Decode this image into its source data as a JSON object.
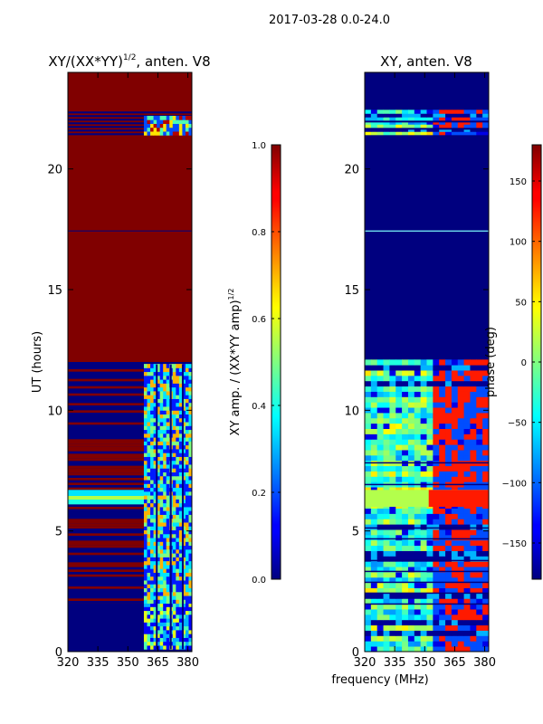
{
  "suptitle": "2017-03-28 0.0-24.0",
  "xlabel": "frequency (MHz)",
  "colors": {
    "hot": "#800000",
    "cold": "#00007f",
    "cyan": "#80ffff"
  },
  "chart_data": [
    {
      "type": "heatmap",
      "title_main": "XY/(XX*YY)",
      "title_sup": "1/2",
      "title_suffix": ", anten. V8",
      "ylabel": "UT (hours)",
      "xlim": [
        320,
        382
      ],
      "ylim": [
        0,
        24
      ],
      "xticks": [
        320,
        335,
        350,
        365,
        380
      ],
      "yticks": [
        0,
        5,
        10,
        15,
        20
      ],
      "rfi_band_start": 358,
      "segments": [
        {
          "y0": 0,
          "y1": 2.0,
          "value": 0.15,
          "label": "low amplitude, RFI speckle 358-382 MHz"
        },
        {
          "y0": 2.0,
          "y1": 12.0,
          "value": 0.85,
          "label": "mixed, dense horizontal stripes"
        },
        {
          "y0": 6.1,
          "y1": 6.7,
          "value": 0.45,
          "label": "cyan band"
        },
        {
          "y0": 12.0,
          "y1": 21.4,
          "value": 1.0,
          "label": "saturated"
        },
        {
          "y0": 21.4,
          "y1": 22.3,
          "value": 0.5,
          "label": "striped"
        },
        {
          "y0": 22.3,
          "y1": 24.0,
          "value": 1.0,
          "label": "saturated"
        }
      ],
      "colorbar": {
        "label_main": "XY amp. / (XX*YY amp)",
        "label_sup": "1/2",
        "range": [
          0.0,
          1.0
        ],
        "ticks": [
          0.0,
          0.2,
          0.4,
          0.6,
          0.8,
          1.0
        ],
        "tick_labels": [
          "0.0",
          "0.2",
          "0.4",
          "0.6",
          "0.8",
          "1.0"
        ]
      }
    },
    {
      "type": "heatmap",
      "title": "XY, anten. V8",
      "ylabel": "",
      "xlim": [
        320,
        382
      ],
      "ylim": [
        0,
        24
      ],
      "xticks": [
        320,
        335,
        350,
        365,
        380
      ],
      "yticks": [
        0,
        5,
        10,
        15,
        20
      ],
      "segments": [
        {
          "y0": 0,
          "y1": 12.0,
          "value": "variable",
          "label": "phase varies across band"
        },
        {
          "y0": 12.0,
          "y1": 21.4,
          "value": -180,
          "label": "flat phase"
        },
        {
          "y0": 21.4,
          "y1": 22.3,
          "value": "variable",
          "label": "striped"
        },
        {
          "y0": 22.3,
          "y1": 24.0,
          "value": -180,
          "label": "flat phase"
        }
      ],
      "colorbar": {
        "label_main": "phase (deg)",
        "range": [
          -180,
          180
        ],
        "ticks": [
          -150,
          -100,
          -50,
          0,
          50,
          100,
          150
        ],
        "tick_labels": [
          "−150",
          "−100",
          "−50",
          "0",
          "50",
          "100",
          "150"
        ]
      }
    }
  ]
}
